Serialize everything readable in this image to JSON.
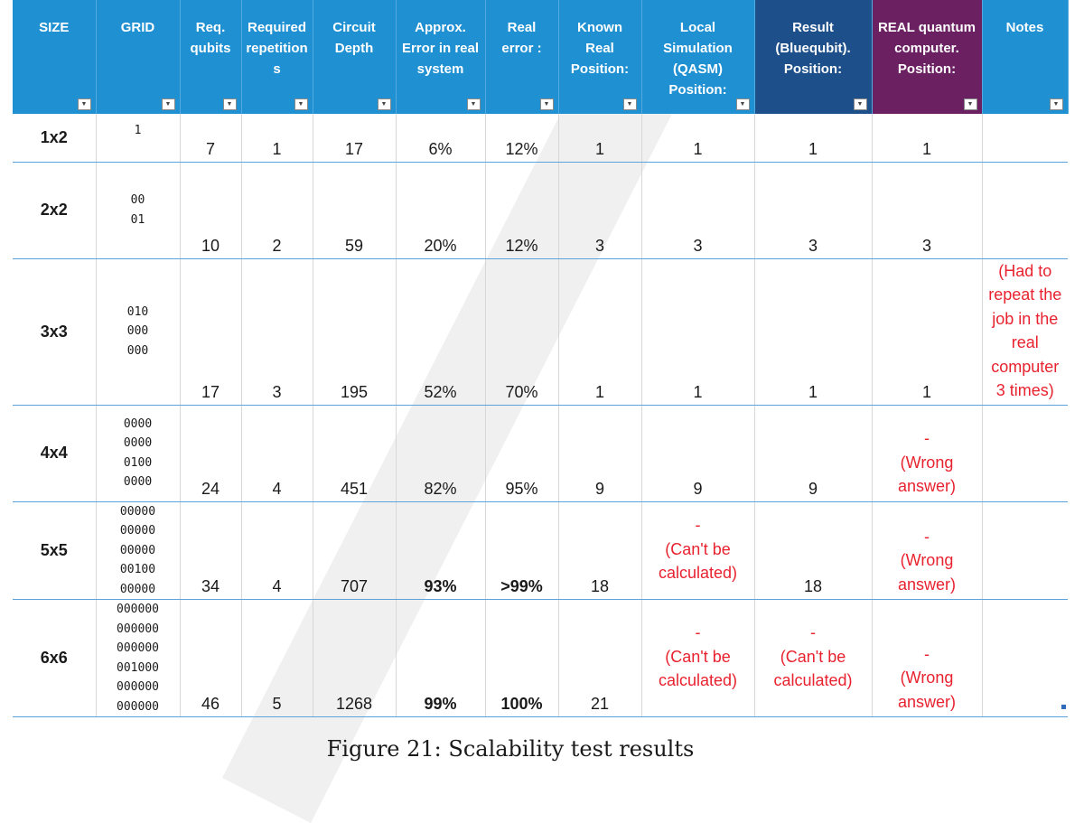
{
  "table": {
    "headers": [
      {
        "label": "SIZE",
        "style": "blue"
      },
      {
        "label": "GRID",
        "style": "blue"
      },
      {
        "label": "Req.\nqubits",
        "style": "blue"
      },
      {
        "label": "Required\nrepetition\ns",
        "style": "blue"
      },
      {
        "label": "Circuit\nDepth",
        "style": "blue"
      },
      {
        "label": "Approx.\nError in real\nsystem",
        "style": "blue"
      },
      {
        "label": "Real\nerror :",
        "style": "blue"
      },
      {
        "label": "Known\nReal\nPosition:",
        "style": "blue"
      },
      {
        "label": "Local\nSimulation\n(QASM)\nPosition:",
        "style": "blue"
      },
      {
        "label": "Result\n(Bluequbit).\nPosition:",
        "style": "dark"
      },
      {
        "label": "REAL quantum\ncomputer.\nPosition:",
        "style": "purple"
      },
      {
        "label": "Notes",
        "style": "blue"
      }
    ],
    "filter_icon": "dropdown-arrow-icon",
    "rows": [
      {
        "size": "1x2",
        "grid": "1",
        "qubits": "7",
        "repetitions": "1",
        "depth": "17",
        "approx_error": "6%",
        "real_error": "12%",
        "known": "1",
        "local": "1",
        "bluequbit": "1",
        "real_qc": "1",
        "notes": ""
      },
      {
        "size": "2x2",
        "grid": "00\n01",
        "qubits": "10",
        "repetitions": "2",
        "depth": "59",
        "approx_error": "20%",
        "real_error": "12%",
        "known": "3",
        "local": "3",
        "bluequbit": "3",
        "real_qc": "3",
        "notes": ""
      },
      {
        "size": "3x3",
        "grid": "010\n000\n000",
        "qubits": "17",
        "repetitions": "3",
        "depth": "195",
        "approx_error": "52%",
        "real_error": "70%",
        "known": "1",
        "local": "1",
        "bluequbit": "1",
        "real_qc": "1",
        "notes": "(Had to\nrepeat the\njob in the\nreal\ncomputer\n3 times)"
      },
      {
        "size": "4x4",
        "grid": "0000\n0000\n0100\n0000",
        "qubits": "24",
        "repetitions": "4",
        "depth": "451",
        "approx_error": "82%",
        "real_error": "95%",
        "known": "9",
        "local": "9",
        "bluequbit": "9",
        "real_qc": "-\n(Wrong\nanswer)",
        "notes": ""
      },
      {
        "size": "5x5",
        "grid": "00000\n00000\n00000\n00100\n00000",
        "qubits": "34",
        "repetitions": "4",
        "depth": "707",
        "approx_error": "93%",
        "real_error": ">99%",
        "known": "18",
        "local": "-\n(Can't be\ncalculated)",
        "bluequbit": "18",
        "real_qc": "-\n(Wrong\nanswer)",
        "notes": ""
      },
      {
        "size": "6x6",
        "grid": "000000\n000000\n000000\n001000\n000000\n000000",
        "qubits": "46",
        "repetitions": "5",
        "depth": "1268",
        "approx_error": "99%",
        "real_error": "100%",
        "known": "21",
        "local": "-\n(Can't be\ncalculated)",
        "bluequbit": "-\n(Can't be\ncalculated)",
        "real_qc": "-\n(Wrong\nanswer)",
        "notes": ""
      }
    ]
  },
  "caption": "Figure 21:  Scalability test results",
  "colors": {
    "header_blue": "#1f90d2",
    "header_dark_blue": "#1d4f8a",
    "header_purple": "#6b2062",
    "error_red": "#e8222f"
  }
}
